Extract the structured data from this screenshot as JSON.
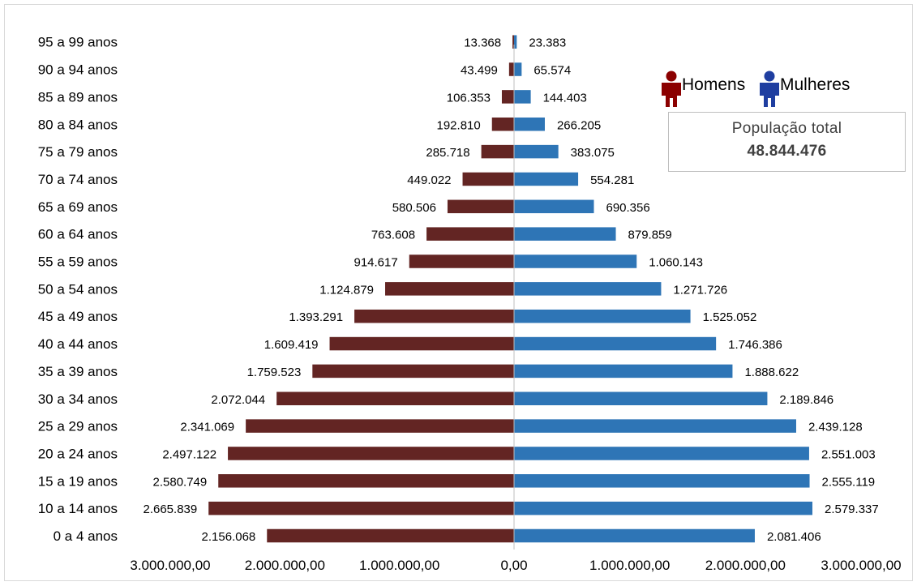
{
  "chart_data": {
    "type": "bar",
    "orientation": "horizontal-diverging",
    "categories": [
      "0 a 4 anos",
      "10 a 14 anos",
      "15 a 19 anos",
      "20 a 24 anos",
      "25 a 29 anos",
      "30 a 34 anos",
      "35 a 39 anos",
      "40 a 44 anos",
      "45 a 49 anos",
      "50 a 54 anos",
      "55 a 59 anos",
      "60 a 64 anos",
      "65 a 69 anos",
      "70 a 74 anos",
      "75 a 79 anos",
      "80 a 84 anos",
      "85 a 89 anos",
      "90 a 94 anos",
      "95 a 99 anos"
    ],
    "series": [
      {
        "name": "Homens",
        "color": "#632523",
        "values": [
          2156068,
          2665839,
          2580749,
          2497122,
          2341069,
          2072044,
          1759523,
          1609419,
          1393291,
          1124879,
          914617,
          763608,
          580506,
          449022,
          285718,
          192810,
          106353,
          43499,
          13368
        ],
        "labels": [
          "2.156.068",
          "2.665.839",
          "2.580.749",
          "2.497.122",
          "2.341.069",
          "2.072.044",
          "1.759.523",
          "1.609.419",
          "1.393.291",
          "1.124.879",
          "914.617",
          "763.608",
          "580.506",
          "449.022",
          "285.718",
          "192.810",
          "106.353",
          "43.499",
          "13.368"
        ]
      },
      {
        "name": "Mulheres",
        "color": "#2e75b6",
        "values": [
          2081406,
          2579337,
          2555119,
          2551003,
          2439128,
          2189846,
          1888622,
          1746386,
          1525052,
          1271726,
          1060143,
          879859,
          690356,
          554281,
          383075,
          266205,
          144403,
          65574,
          23383
        ],
        "labels": [
          "2.081.406",
          "2.579.337",
          "2.555.119",
          "2.551.003",
          "2.439.128",
          "2.189.846",
          "1.888.622",
          "1.746.386",
          "1.525.052",
          "1.271.726",
          "1.060.143",
          "879.859",
          "690.356",
          "554.281",
          "383.075",
          "266.205",
          "144.403",
          "65.574",
          "23.383"
        ]
      }
    ],
    "xlim": [
      -3000000,
      3000000
    ],
    "x_ticks": [
      -3000000,
      -2000000,
      -1000000,
      0,
      1000000,
      2000000,
      3000000
    ],
    "x_tick_labels": [
      "3.000.000,00",
      "2.000.000,00",
      "1.000.000,00",
      "0,00",
      "1.000.000,00",
      "2.000.000,00",
      "3.000.000,00"
    ],
    "legend_position": "top-right",
    "legend_icons": [
      "person-icon",
      "person-icon"
    ],
    "icon_colors": [
      "#8b0000",
      "#1f3ea0"
    ],
    "grid": false
  },
  "total_box": {
    "title": "População total",
    "value": "48.844.476"
  }
}
